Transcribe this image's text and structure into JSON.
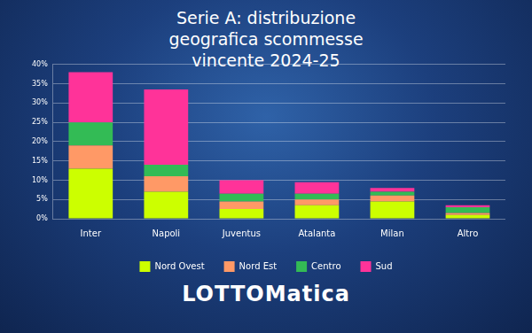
{
  "chart_data": {
    "type": "bar",
    "title": "Serie A: distribuzione geografica scommesse vincente 2024-25",
    "categories": [
      "Inter",
      "Napoli",
      "Juventus",
      "Atalanta",
      "Milan",
      "Altro"
    ],
    "series": [
      {
        "name": "Nord Ovest",
        "color": "#ccff00",
        "values": [
          13,
          7,
          2.5,
          3.5,
          4.5,
          1
        ]
      },
      {
        "name": "Nord Est",
        "color": "#ff9966",
        "values": [
          6,
          4,
          2,
          1.5,
          1.5,
          0.5
        ]
      },
      {
        "name": "Centro",
        "color": "#33bb55",
        "values": [
          6,
          3,
          2,
          1.5,
          1,
          1.5
        ]
      },
      {
        "name": "Sud",
        "color": "#ff3399",
        "values": [
          13,
          19.5,
          3.5,
          3,
          1,
          0.5
        ]
      }
    ],
    "ylim": [
      0,
      40
    ],
    "yticks": [
      {
        "value": 0,
        "label": "0%"
      },
      {
        "value": 5,
        "label": "5%"
      },
      {
        "value": 10,
        "label": "10%"
      },
      {
        "value": 15,
        "label": "15%"
      },
      {
        "value": 20,
        "label": "20%"
      },
      {
        "value": 25,
        "label": "25%"
      },
      {
        "value": 30,
        "label": "30%"
      },
      {
        "value": 35,
        "label": "35%"
      },
      {
        "value": 40,
        "label": "40%"
      }
    ],
    "stacked": true,
    "grid": true,
    "legend": "bottom",
    "annotations": [
      "LOTTOMatica"
    ]
  }
}
